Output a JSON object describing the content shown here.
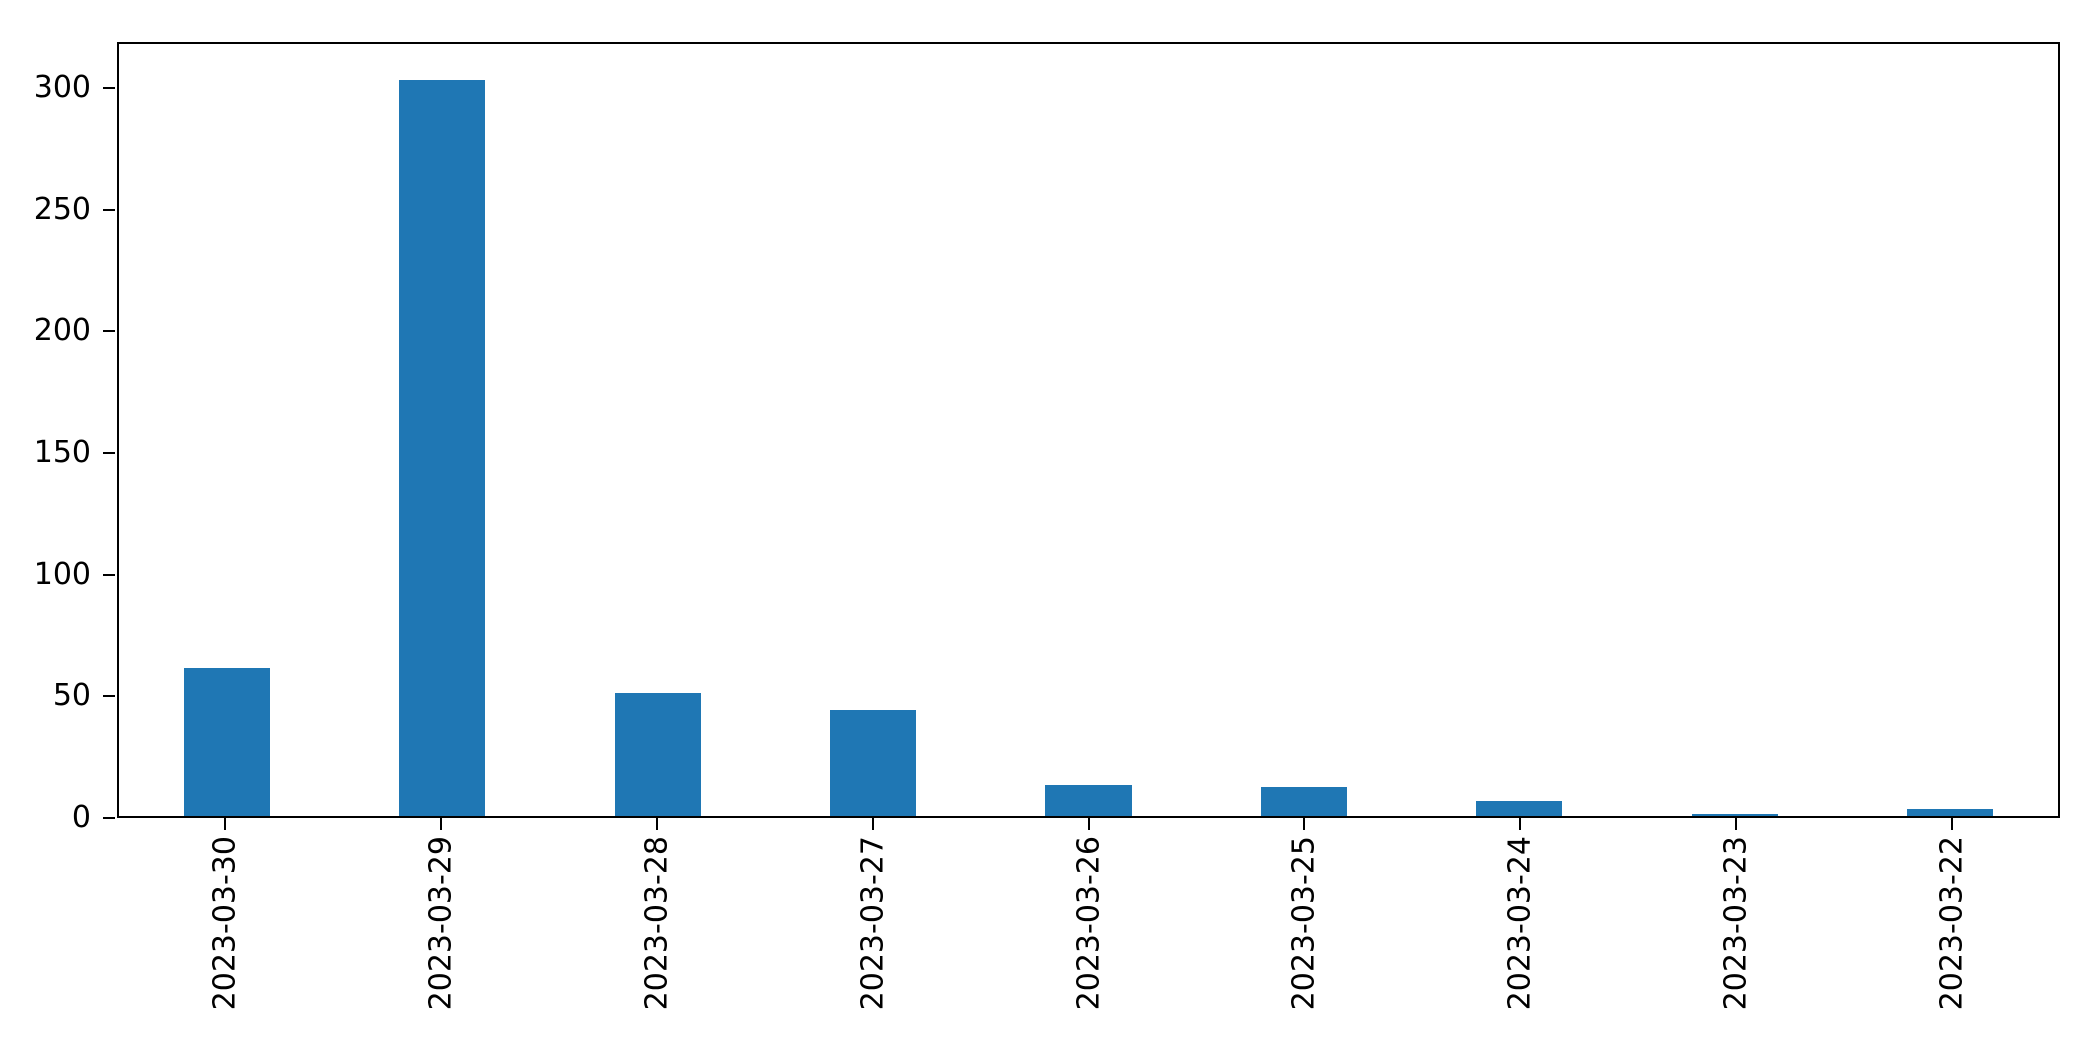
{
  "chart_data": {
    "type": "bar",
    "title": "",
    "xlabel": "",
    "ylabel": "",
    "categories": [
      "2023-03-30",
      "2023-03-29",
      "2023-03-28",
      "2023-03-27",
      "2023-03-26",
      "2023-03-25",
      "2023-03-24",
      "2023-03-23",
      "2023-03-22"
    ],
    "values": [
      61,
      304,
      51,
      44,
      13,
      12,
      6,
      1,
      3
    ],
    "ylim": [
      0,
      319
    ],
    "yticks": [
      0,
      50,
      100,
      150,
      200,
      250,
      300
    ],
    "bar_color": "#1f77b4",
    "axis_color": "#000000",
    "background_color": "#ffffff",
    "grid": false,
    "legend_position": "none",
    "xtick_rotation": 90
  }
}
